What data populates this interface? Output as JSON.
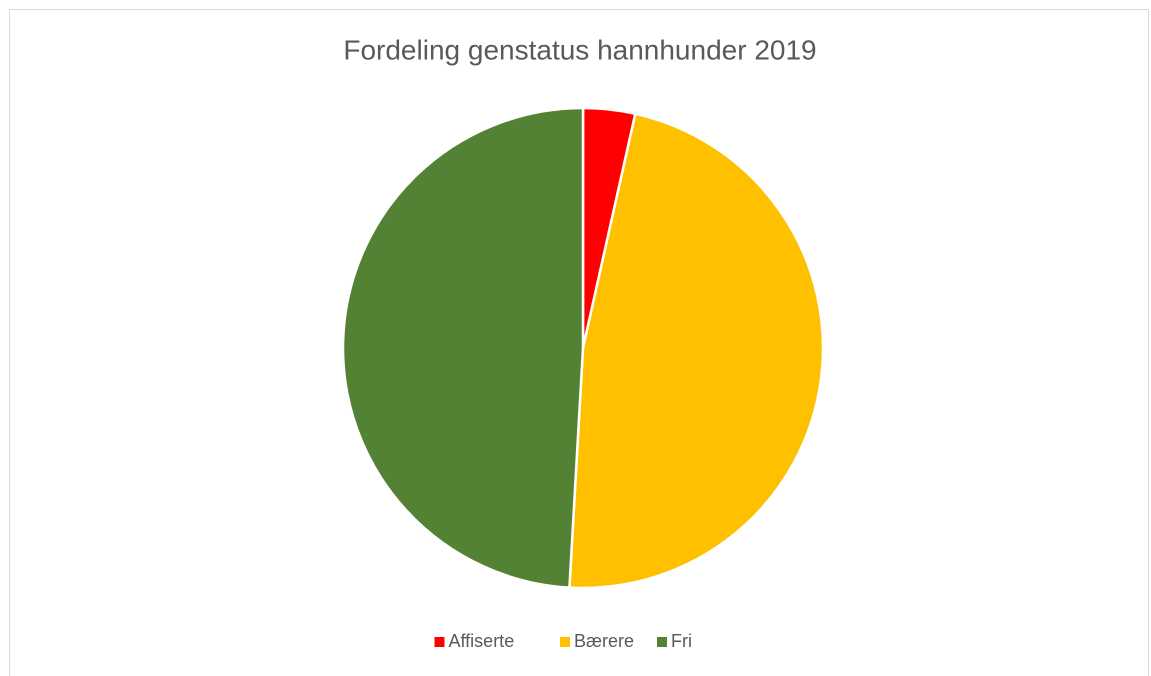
{
  "chart_data": {
    "type": "pie",
    "title": "Fordeling genstatus hannhunder 2019",
    "categories": [
      "Affiserte",
      "Bærere",
      "Fri"
    ],
    "values": [
      3.5,
      47.4,
      49.1
    ],
    "colors": [
      "#ff0000",
      "#ffc000",
      "#548235"
    ],
    "legend": "bottom"
  }
}
